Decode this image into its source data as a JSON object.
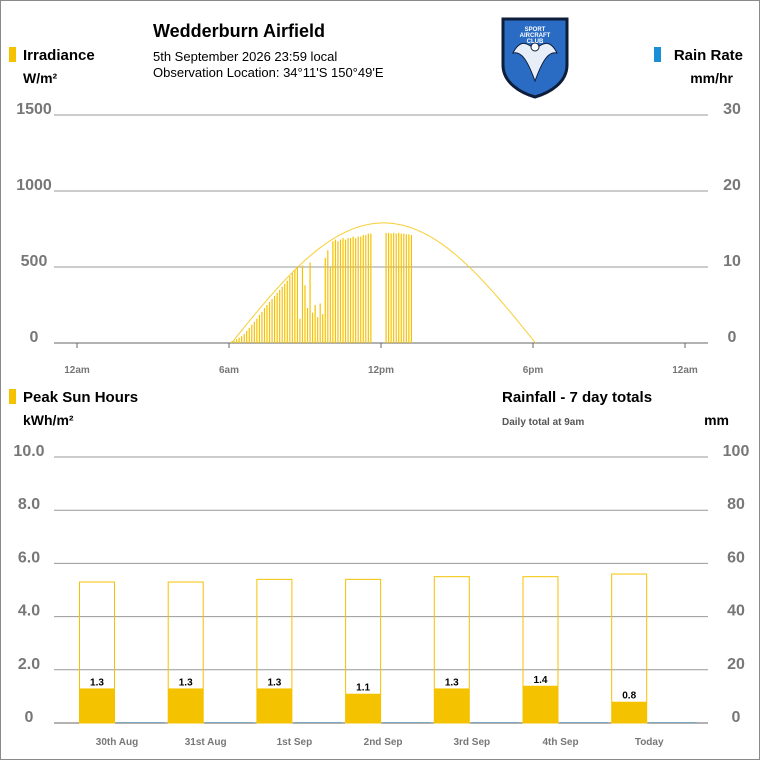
{
  "header": {
    "title": "Wedderburn Airfield",
    "date_line": "5th September 2026  23:59 local",
    "location_line": "Observation Location:  34°11'S 150°49'E",
    "logo_text": [
      "SPORT",
      "AIRCRAFT",
      "CLUB"
    ]
  },
  "colors": {
    "irradiance": "#f5c200",
    "rain": "#1a8fd6",
    "clear_sky": "#f5c200",
    "grid": "#999999",
    "axis_text": "#777777"
  },
  "top_chart": {
    "left_label": "Irradiance",
    "left_unit": "W/m²",
    "right_label": "Rain Rate",
    "right_unit": "mm/hr",
    "left_ticks": [
      "1500",
      "1000",
      "500",
      "0"
    ],
    "right_ticks": [
      "30",
      "20",
      "10",
      "0"
    ],
    "x_ticks": [
      "12am",
      "6am",
      "12pm",
      "6pm",
      "12am"
    ]
  },
  "bottom_chart": {
    "left_label": "Peak Sun Hours",
    "left_unit": "kWh/m²",
    "right_label": "Rainfall - 7 day totals",
    "right_note": "Daily total at 9am",
    "right_unit": "mm",
    "left_ticks": [
      "10.0",
      "8.0",
      "6.0",
      "4.0",
      "2.0",
      "0"
    ],
    "right_ticks": [
      "100",
      "80",
      "60",
      "40",
      "20",
      "0"
    ]
  },
  "chart_data": [
    {
      "type": "bar",
      "x_unit": "hour of day",
      "xlim": [
        0,
        24
      ],
      "ylim": [
        0,
        1500
      ],
      "y2lim": [
        0,
        30
      ],
      "clear_sky_curve": {
        "start_hour": 6.1,
        "peak_hour": 12.0,
        "end_hour": 18.1,
        "peak_value": 790
      },
      "irradiance_samples": [
        [
          6.1,
          10
        ],
        [
          6.2,
          15
        ],
        [
          6.3,
          25
        ],
        [
          6.4,
          35
        ],
        [
          6.5,
          45
        ],
        [
          6.6,
          60
        ],
        [
          6.7,
          80
        ],
        [
          6.8,
          100
        ],
        [
          6.9,
          120
        ],
        [
          7.0,
          140
        ],
        [
          7.1,
          160
        ],
        [
          7.2,
          185
        ],
        [
          7.3,
          205
        ],
        [
          7.4,
          230
        ],
        [
          7.5,
          250
        ],
        [
          7.6,
          270
        ],
        [
          7.7,
          290
        ],
        [
          7.8,
          310
        ],
        [
          7.9,
          330
        ],
        [
          8.0,
          350
        ],
        [
          8.1,
          370
        ],
        [
          8.2,
          390
        ],
        [
          8.3,
          410
        ],
        [
          8.4,
          440
        ],
        [
          8.5,
          460
        ],
        [
          8.6,
          480
        ],
        [
          8.7,
          500
        ],
        [
          8.8,
          160
        ],
        [
          8.9,
          510
        ],
        [
          9.0,
          380
        ],
        [
          9.1,
          230
        ],
        [
          9.2,
          530
        ],
        [
          9.3,
          200
        ],
        [
          9.4,
          250
        ],
        [
          9.5,
          170
        ],
        [
          9.6,
          260
        ],
        [
          9.7,
          190
        ],
        [
          9.8,
          560
        ],
        [
          9.9,
          610
        ],
        [
          10.0,
          500
        ],
        [
          10.1,
          670
        ],
        [
          10.2,
          680
        ],
        [
          10.3,
          670
        ],
        [
          10.4,
          680
        ],
        [
          10.5,
          690
        ],
        [
          10.6,
          680
        ],
        [
          10.7,
          690
        ],
        [
          10.8,
          690
        ],
        [
          10.9,
          700
        ],
        [
          11.0,
          690
        ],
        [
          11.1,
          700
        ],
        [
          11.2,
          700
        ],
        [
          11.3,
          710
        ],
        [
          11.4,
          710
        ],
        [
          11.5,
          720
        ],
        [
          11.6,
          720
        ],
        [
          12.2,
          725
        ],
        [
          12.3,
          725
        ],
        [
          12.4,
          720
        ],
        [
          12.5,
          725
        ],
        [
          12.6,
          720
        ],
        [
          12.7,
          725
        ],
        [
          12.8,
          720
        ],
        [
          12.9,
          720
        ],
        [
          13.0,
          715
        ],
        [
          13.1,
          715
        ],
        [
          13.2,
          710
        ]
      ],
      "rain_rate_samples": []
    },
    {
      "type": "bar",
      "categories": [
        "30th Aug",
        "31st Aug",
        "1st Sep",
        "2nd Sep",
        "3rd Sep",
        "4th Sep",
        "Today"
      ],
      "ylim": [
        0,
        10
      ],
      "y2lim": [
        0,
        100
      ],
      "series": [
        {
          "name": "Peak Sun Hours",
          "values": [
            1.3,
            1.3,
            1.3,
            1.1,
            1.3,
            1.4,
            0.8
          ]
        }
      ],
      "clear_sky_values": [
        5.3,
        5.3,
        5.4,
        5.4,
        5.5,
        5.5,
        5.6
      ],
      "rainfall_values": [
        0,
        0,
        0,
        0,
        0,
        0,
        0
      ]
    }
  ]
}
